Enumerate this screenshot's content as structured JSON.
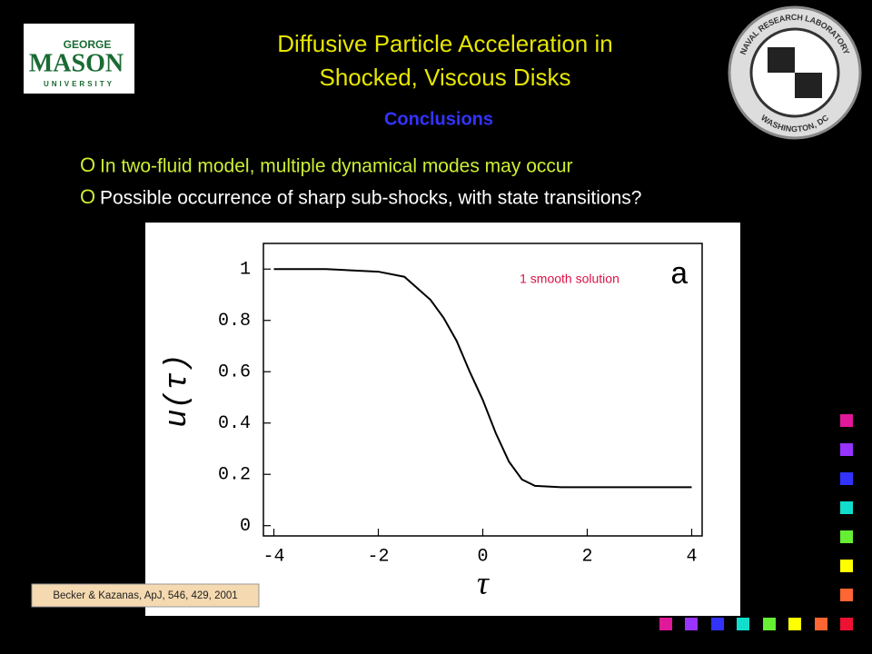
{
  "logos": {
    "gmu": [
      "GEORGE",
      "MASON",
      "UNIVERSITY"
    ],
    "nrl": [
      "NAVAL RESEARCH LABORATORY",
      "WASHINGTON, DC"
    ]
  },
  "header": {
    "title_lines": [
      "Diffusive Particle Acceleration in",
      "Shocked, Viscous Disks"
    ],
    "subtitle": "Conclusions"
  },
  "bullets": [
    "In two-fluid model, multiple dynamical modes may occur",
    "Possible occurrence of sharp sub-shocks, with state transitions?"
  ],
  "bullet_marker": "O",
  "chart_data": {
    "type": "line",
    "x": [
      -4,
      -3,
      -2,
      -1.5,
      -1,
      -0.75,
      -0.5,
      -0.25,
      0,
      0.25,
      0.5,
      0.75,
      1,
      1.5,
      2,
      3,
      4
    ],
    "values": [
      1,
      1,
      0.99,
      0.97,
      0.88,
      0.81,
      0.72,
      0.6,
      0.49,
      0.36,
      0.25,
      0.18,
      0.155,
      0.15,
      0.15,
      0.15,
      0.15
    ],
    "color": "#000000",
    "xlim": [
      -4.2,
      4.2
    ],
    "ylim": [
      -0.04,
      1.1
    ],
    "xticks": [
      -4,
      -2,
      0,
      2,
      4
    ],
    "yticks": [
      0,
      0.2,
      0.4,
      0.6,
      0.8,
      1
    ],
    "xlabel": "τ",
    "ylabel": "u(τ)",
    "annotations": [
      "1 smooth solution",
      "a"
    ]
  },
  "citation": "Becker & Kazanas, ApJ, 546, 429, 2001"
}
